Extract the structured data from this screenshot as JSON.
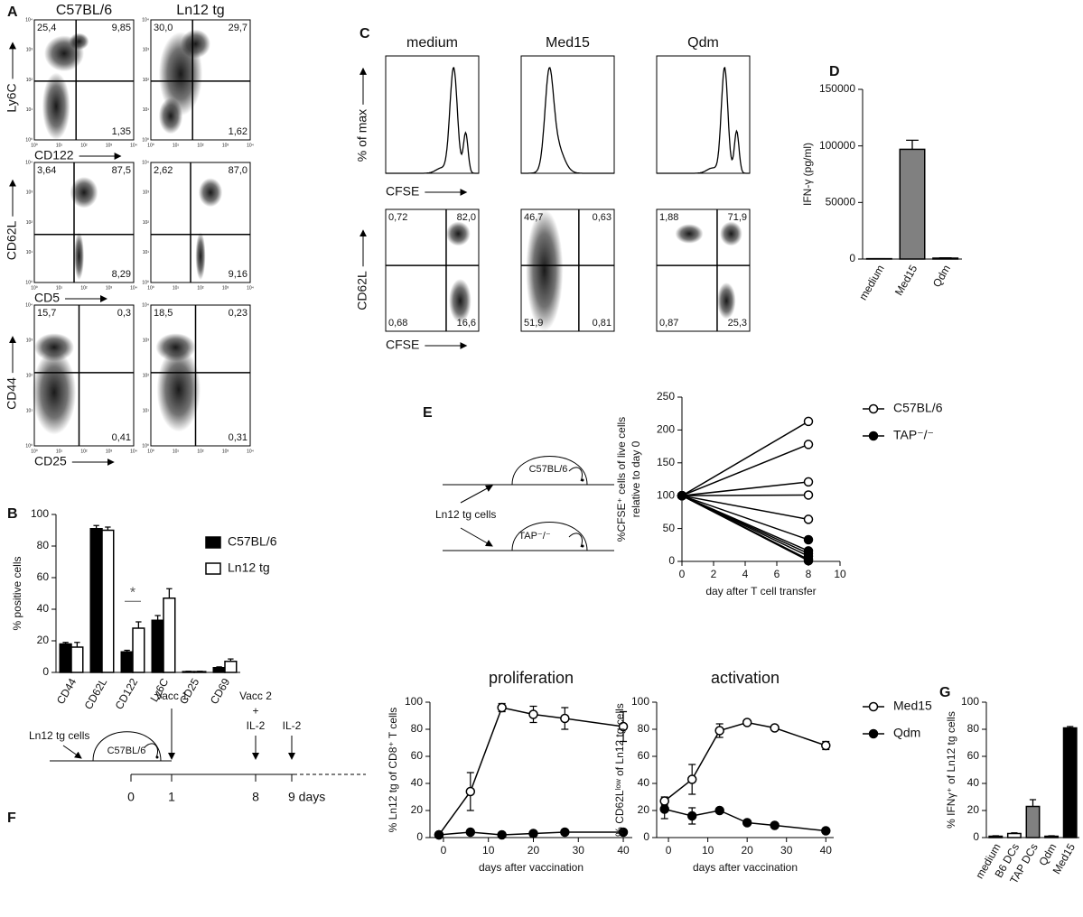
{
  "panel_labels": [
    "A",
    "B",
    "C",
    "D",
    "E",
    "F",
    "G"
  ],
  "flow": {
    "log_ticks": [
      "10⁰",
      "10¹",
      "10²",
      "10³",
      "10⁴"
    ],
    "panel_a": {
      "columns": [
        "C57BL/6",
        "Ln12 tg"
      ],
      "rows": [
        {
          "y_label": "Ly6C",
          "x_label": "CD122",
          "plots": [
            {
              "upper_left": "25,4",
              "upper_right": "9,85",
              "lower_right": "1,35"
            },
            {
              "upper_left": "30,0",
              "upper_right": "29,7",
              "lower_right": "1,62"
            }
          ]
        },
        {
          "y_label": "CD62L",
          "x_label": "CD5",
          "plots": [
            {
              "upper_left": "3,64",
              "upper_right": "87,5",
              "lower_right": "8,29"
            },
            {
              "upper_left": "2,62",
              "upper_right": "87,0",
              "lower_right": "9,16"
            }
          ]
        },
        {
          "y_label": "CD44",
          "x_label": "CD25",
          "plots": [
            {
              "upper_left": "15,7",
              "upper_right": "0,3",
              "lower_right": "0,41"
            },
            {
              "upper_left": "18,5",
              "upper_right": "0,23",
              "lower_right": "0,31"
            }
          ]
        }
      ]
    },
    "panel_c": {
      "columns": [
        "medium",
        "Med15",
        "Qdm"
      ],
      "histogram_y_label": "% of max",
      "histogram_x_label": "CFSE",
      "dot_y_label": "CD62L",
      "dot_x_label": "CFSE",
      "plots": [
        {
          "upper_left": "0,72",
          "upper_right": "82,0",
          "lower_left": "0,68",
          "lower_right": "16,6"
        },
        {
          "upper_left": "46,7",
          "upper_right": "0,63",
          "lower_left": "51,9",
          "lower_right": "0,81"
        },
        {
          "upper_left": "1,88",
          "upper_right": "71,9",
          "lower_left": "0,87",
          "lower_right": "25,3"
        }
      ]
    }
  },
  "schematic_e": {
    "recipients": [
      "C57BL/6",
      "TAP⁻/⁻"
    ],
    "donor": "Ln12 tg cells"
  },
  "timeline_f": {
    "donor": "Ln12 tg cells",
    "recipient": "C57BL/6",
    "days": [
      "0",
      "1",
      "8",
      "9 days"
    ],
    "events": [
      [
        "Vacc 1"
      ],
      [
        "Vacc 2",
        "+",
        "IL-2"
      ],
      [
        "IL-2"
      ]
    ]
  },
  "chart_data": [
    {
      "type": "bar",
      "ylabel": "% positive cells",
      "categories": [
        "CD44",
        "CD62L",
        "CD122",
        "Ly6C",
        "CD25",
        "CD69"
      ],
      "series": [
        {
          "name": "C57BL/6",
          "color": "#000000",
          "values": [
            18,
            91,
            13,
            33,
            0.5,
            3
          ],
          "errors": [
            1,
            2,
            1,
            3,
            0.2,
            0.5
          ]
        },
        {
          "name": "Ln12 tg",
          "color": "#ffffff",
          "values": [
            16,
            90,
            28,
            47,
            0.5,
            7
          ],
          "errors": [
            3,
            2,
            4,
            6,
            0.2,
            1.5
          ]
        }
      ],
      "ylim": [
        0,
        100
      ],
      "yticks": [
        0,
        20,
        40,
        60,
        80,
        100
      ],
      "annotation": "*",
      "legend": "upper right"
    },
    {
      "type": "bar",
      "ylabel": "IFN-γ (pg/ml)",
      "categories": [
        "medium",
        "Med15",
        "Qdm"
      ],
      "values": [
        300,
        97000,
        800
      ],
      "errors": [
        0,
        8000,
        300
      ],
      "color": "#808080",
      "ylim": [
        0,
        150000
      ],
      "yticks": [
        0,
        50000,
        100000,
        150000
      ]
    },
    {
      "type": "line",
      "ylabel": [
        "%CFSE⁺ cells of live cells",
        "relative to day 0"
      ],
      "xlabel": "day after T cell transfer",
      "x": [
        0,
        8
      ],
      "series": [
        {
          "name": "C57BL/6",
          "marker": "open",
          "lines": [
            [
              100,
              213
            ],
            [
              100,
              178
            ],
            [
              100,
              121
            ],
            [
              100,
              101
            ],
            [
              100,
              64
            ]
          ]
        },
        {
          "name": "TAP⁻/⁻",
          "marker": "filled",
          "lines": [
            [
              100,
              33
            ],
            [
              100,
              16
            ],
            [
              100,
              12
            ],
            [
              100,
              8
            ],
            [
              100,
              3
            ],
            [
              100,
              1
            ]
          ]
        }
      ],
      "xlim": [
        0,
        10
      ],
      "xticks": [
        0,
        2,
        4,
        6,
        8,
        10
      ],
      "ylim": [
        0,
        250
      ],
      "yticks": [
        0,
        50,
        100,
        150,
        200,
        250
      ],
      "legend": "upper right"
    },
    {
      "type": "line",
      "title": "proliferation",
      "ylabel": "% Ln12 tg of CD8⁺ T cells",
      "xlabel": "days after vaccination",
      "x": [
        -1,
        6,
        13,
        20,
        27,
        40
      ],
      "series": [
        {
          "name": "Med15",
          "marker": "open",
          "values": [
            2,
            34,
            96,
            91,
            88,
            82
          ],
          "errors": [
            1,
            14,
            3,
            6,
            8,
            11
          ]
        },
        {
          "name": "Qdm",
          "marker": "filled",
          "values": [
            2,
            4,
            2,
            3,
            4,
            4
          ],
          "errors": [
            0.5,
            1,
            0.5,
            0.5,
            0.5,
            0.5
          ]
        }
      ],
      "xlim": [
        -3,
        42
      ],
      "xticks": [
        0,
        10,
        20,
        30,
        40
      ],
      "ylim": [
        0,
        100
      ],
      "yticks": [
        0,
        20,
        40,
        60,
        80,
        100
      ]
    },
    {
      "type": "line",
      "title": "activation",
      "ylabel": "% CD62Lˡᵒʷ of Ln12 tg cells",
      "xlabel": "days after vaccination",
      "x": [
        -1,
        6,
        13,
        20,
        27,
        40
      ],
      "series": [
        {
          "name": "Med15",
          "marker": "open",
          "values": [
            27,
            43,
            79,
            85,
            81,
            68
          ],
          "errors": [
            3,
            11,
            5,
            1,
            1,
            3
          ]
        },
        {
          "name": "Qdm",
          "marker": "filled",
          "values": [
            21,
            16,
            20,
            11,
            9,
            5
          ],
          "errors": [
            7,
            6,
            1,
            1,
            1,
            1
          ]
        }
      ],
      "xlim": [
        -3,
        42
      ],
      "xticks": [
        0,
        10,
        20,
        30,
        40
      ],
      "ylim": [
        0,
        100
      ],
      "yticks": [
        0,
        20,
        40,
        60,
        80,
        100
      ],
      "legend": "upper right"
    },
    {
      "type": "bar",
      "ylabel": "% IFNγ⁺ of Ln12 tg cells",
      "categories": [
        "medium",
        "B6 DCs",
        "TAP DCs",
        "Qdm",
        "Med15"
      ],
      "values": [
        1,
        3,
        23,
        1,
        81
      ],
      "errors": [
        0.3,
        0.5,
        5,
        0.3,
        1
      ],
      "colors": [
        "#ffffff",
        "#ffffff",
        "#808080",
        "#ffffff",
        "#000000"
      ],
      "ylim": [
        0,
        100
      ],
      "yticks": [
        0,
        20,
        40,
        60,
        80,
        100
      ]
    }
  ]
}
